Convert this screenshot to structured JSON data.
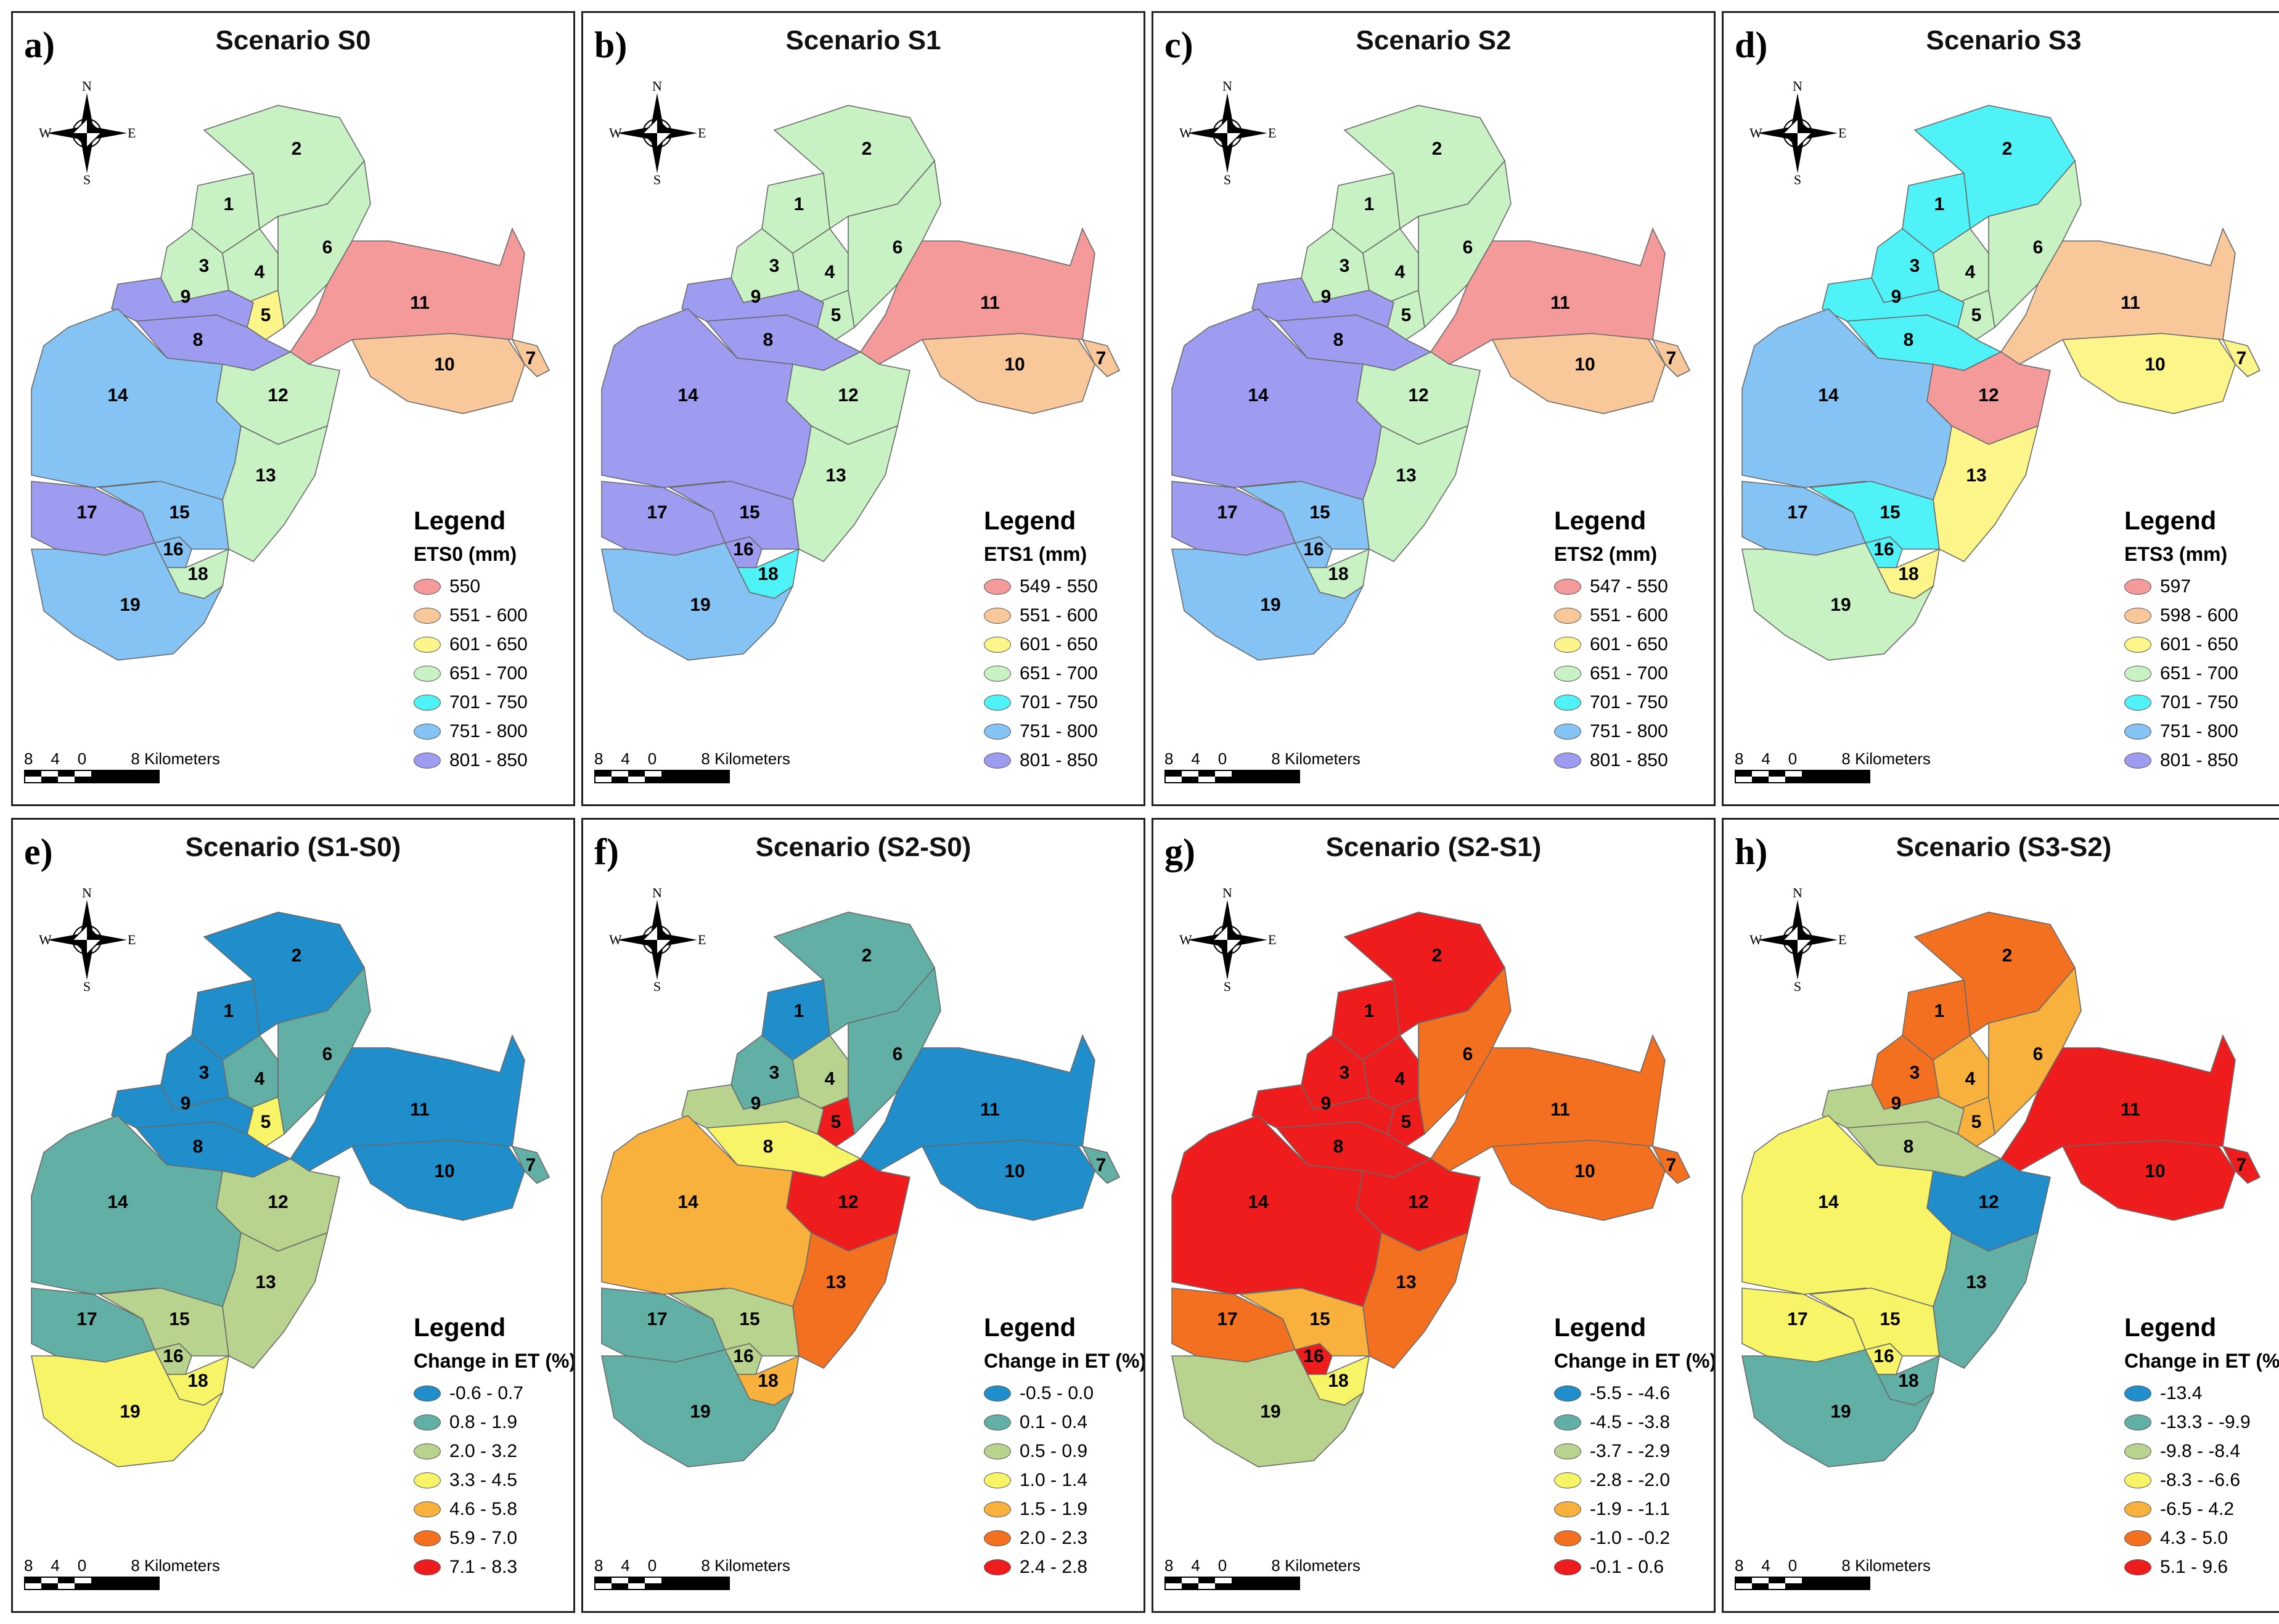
{
  "compass": {
    "n": "N",
    "s": "S",
    "e": "E",
    "w": "W"
  },
  "scale": {
    "ticks": [
      "8",
      "4",
      "0",
      "8 Kilometers"
    ]
  },
  "legend_heading": "Legend",
  "zone_names": [
    "1",
    "2",
    "3",
    "4",
    "5",
    "6",
    "7",
    "8",
    "9",
    "10",
    "11",
    "12",
    "13",
    "14",
    "15",
    "16",
    "17",
    "18",
    "19"
  ],
  "panels": [
    {
      "letter": "a)",
      "title": "Scenario S0",
      "field": "ETS0 (mm)",
      "classes": [
        {
          "label": "550",
          "color": "#f59a9a"
        },
        {
          "label": "551 - 600",
          "color": "#f8c79a"
        },
        {
          "label": "601 - 650",
          "color": "#fbf58a"
        },
        {
          "label": "651 - 700",
          "color": "#c8f2c4"
        },
        {
          "label": "701 - 750",
          "color": "#4ff2f6"
        },
        {
          "label": "751 - 800",
          "color": "#86c3f5"
        },
        {
          "label": "801 - 850",
          "color": "#9e9cf0"
        }
      ],
      "zone_class": [
        4,
        4,
        4,
        4,
        3,
        4,
        2,
        7,
        7,
        2,
        1,
        4,
        4,
        6,
        6,
        6,
        7,
        4,
        6
      ]
    },
    {
      "letter": "b)",
      "title": "Scenario S1",
      "field": "ETS1 (mm)",
      "classes": [
        {
          "label": "549 - 550",
          "color": "#f59a9a"
        },
        {
          "label": "551 - 600",
          "color": "#f8c79a"
        },
        {
          "label": "601 - 650",
          "color": "#fbf58a"
        },
        {
          "label": "651 - 700",
          "color": "#c8f2c4"
        },
        {
          "label": "701 - 750",
          "color": "#4ff2f6"
        },
        {
          "label": "751 - 800",
          "color": "#86c3f5"
        },
        {
          "label": "801 - 850",
          "color": "#9e9cf0"
        }
      ],
      "zone_class": [
        4,
        4,
        4,
        4,
        4,
        4,
        2,
        7,
        7,
        2,
        1,
        4,
        4,
        7,
        7,
        7,
        7,
        5,
        6
      ]
    },
    {
      "letter": "c)",
      "title": "Scenario S2",
      "field": "ETS2 (mm)",
      "classes": [
        {
          "label": "547 - 550",
          "color": "#f59a9a"
        },
        {
          "label": "551 - 600",
          "color": "#f8c79a"
        },
        {
          "label": "601 - 650",
          "color": "#fbf58a"
        },
        {
          "label": "651 - 700",
          "color": "#c8f2c4"
        },
        {
          "label": "701 - 750",
          "color": "#4ff2f6"
        },
        {
          "label": "751 - 800",
          "color": "#86c3f5"
        },
        {
          "label": "801 - 850",
          "color": "#9e9cf0"
        }
      ],
      "zone_class": [
        4,
        4,
        4,
        4,
        4,
        4,
        2,
        7,
        7,
        2,
        1,
        4,
        4,
        7,
        6,
        6,
        7,
        4,
        6
      ]
    },
    {
      "letter": "d)",
      "title": "Scenario S3",
      "field": "ETS3 (mm)",
      "classes": [
        {
          "label": "597",
          "color": "#f59a9a"
        },
        {
          "label": "598 - 600",
          "color": "#f8c79a"
        },
        {
          "label": "601 - 650",
          "color": "#fbf58a"
        },
        {
          "label": "651 - 700",
          "color": "#c8f2c4"
        },
        {
          "label": "701 - 750",
          "color": "#4ff2f6"
        },
        {
          "label": "751 - 800",
          "color": "#86c3f5"
        },
        {
          "label": "801 - 850",
          "color": "#9e9cf0"
        }
      ],
      "zone_class": [
        5,
        5,
        5,
        4,
        4,
        4,
        3,
        5,
        5,
        3,
        2,
        1,
        3,
        6,
        5,
        5,
        6,
        3,
        4
      ]
    },
    {
      "letter": "e)",
      "title": "Scenario (S1-S0)",
      "field": "Change in ET (%)",
      "classes": [
        {
          "label": "-0.6 - 0.7",
          "color": "#1f8ecb"
        },
        {
          "label": "0.8 - 1.9",
          "color": "#62afa5"
        },
        {
          "label": "2.0 - 3.2",
          "color": "#b8d38e"
        },
        {
          "label": "3.3 - 4.5",
          "color": "#f7f567"
        },
        {
          "label": "4.6 - 5.8",
          "color": "#f7b13c"
        },
        {
          "label": "5.9 - 7.0",
          "color": "#f37020"
        },
        {
          "label": "7.1 - 8.3",
          "color": "#ee1c1c"
        }
      ],
      "zone_class": [
        1,
        1,
        1,
        2,
        4,
        2,
        2,
        1,
        1,
        1,
        1,
        3,
        3,
        2,
        3,
        3,
        2,
        4,
        4
      ]
    },
    {
      "letter": "f)",
      "title": "Scenario (S2-S0)",
      "field": "Change in ET (%)",
      "classes": [
        {
          "label": "-0.5 - 0.0",
          "color": "#1f8ecb"
        },
        {
          "label": "0.1 - 0.4",
          "color": "#62afa5"
        },
        {
          "label": "0.5 - 0.9",
          "color": "#b8d38e"
        },
        {
          "label": "1.0 - 1.4",
          "color": "#f7f567"
        },
        {
          "label": "1.5 - 1.9",
          "color": "#f7b13c"
        },
        {
          "label": "2.0 - 2.3",
          "color": "#f37020"
        },
        {
          "label": "2.4 - 2.8",
          "color": "#ee1c1c"
        }
      ],
      "zone_class": [
        1,
        2,
        2,
        3,
        7,
        2,
        2,
        4,
        3,
        1,
        1,
        7,
        6,
        5,
        3,
        3,
        2,
        5,
        2
      ]
    },
    {
      "letter": "g)",
      "title": "Scenario (S2-S1)",
      "field": "Change in ET (%)",
      "classes": [
        {
          "label": "-5.5 - -4.6",
          "color": "#1f8ecb"
        },
        {
          "label": "-4.5 - -3.8",
          "color": "#62afa5"
        },
        {
          "label": "-3.7 - -2.9",
          "color": "#b8d38e"
        },
        {
          "label": "-2.8 - -2.0",
          "color": "#f7f567"
        },
        {
          "label": "-1.9 - -1.1",
          "color": "#f7b13c"
        },
        {
          "label": "-1.0 - -0.2",
          "color": "#f37020"
        },
        {
          "label": "-0.1 - 0.6",
          "color": "#ee1c1c"
        }
      ],
      "zone_class": [
        7,
        7,
        7,
        7,
        7,
        6,
        6,
        7,
        7,
        6,
        6,
        7,
        6,
        7,
        5,
        7,
        6,
        4,
        3
      ]
    },
    {
      "letter": "h)",
      "title": "Scenario (S3-S2)",
      "field": "Change in ET (%)",
      "classes": [
        {
          "label": "-13.4",
          "color": "#1f8ecb"
        },
        {
          "label": "-13.3 - -9.9",
          "color": "#62afa5"
        },
        {
          "label": "-9.8 - -8.4",
          "color": "#b8d38e"
        },
        {
          "label": "-8.3 - -6.6",
          "color": "#f7f567"
        },
        {
          "label": "-6.5 - 4.2",
          "color": "#f7b13c"
        },
        {
          "label": "4.3 - 5.0",
          "color": "#f37020"
        },
        {
          "label": "5.1 - 9.6",
          "color": "#ee1c1c"
        }
      ],
      "zone_class": [
        6,
        6,
        6,
        5,
        5,
        5,
        7,
        3,
        3,
        7,
        7,
        1,
        2,
        4,
        4,
        4,
        4,
        2,
        2
      ]
    }
  ]
}
